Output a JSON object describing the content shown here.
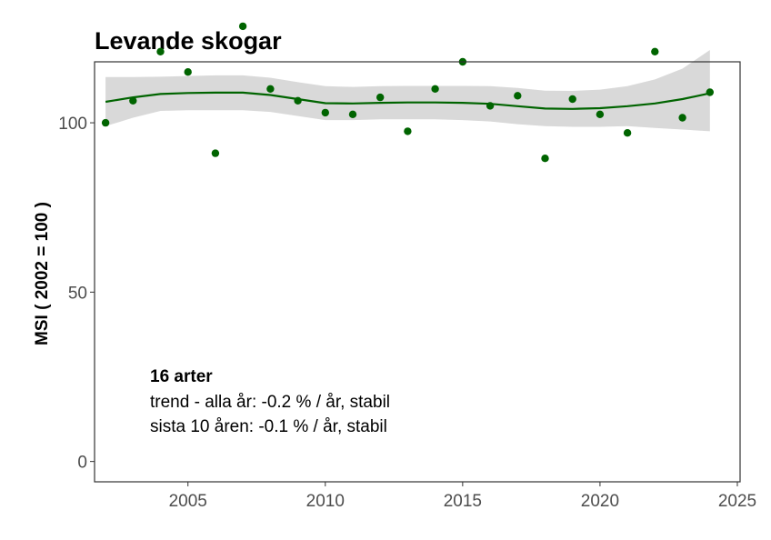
{
  "chart_data": {
    "type": "scatter",
    "title": "Levande skogar",
    "xlabel": "",
    "ylabel": "MSI ( 2002 = 100 )",
    "xlim": [
      2001.6,
      2025.1
    ],
    "ylim": [
      -6,
      118
    ],
    "x_ticks": [
      2005,
      2010,
      2015,
      2020,
      2025
    ],
    "y_ticks": [
      0,
      50,
      100
    ],
    "x_tick_labels": [
      "2005",
      "2010",
      "2015",
      "2020",
      "2025"
    ],
    "y_tick_labels": [
      "0",
      "50",
      "100"
    ],
    "grid": false,
    "points": {
      "x": [
        2002,
        2003,
        2004,
        2005,
        2006,
        2007,
        2008,
        2009,
        2010,
        2011,
        2012,
        2013,
        2014,
        2015,
        2016,
        2017,
        2018,
        2019,
        2020,
        2021,
        2022,
        2023,
        2024
      ],
      "y": [
        100,
        106.5,
        121,
        115,
        91,
        128.5,
        110,
        106.5,
        103,
        102.5,
        107.5,
        97.5,
        110,
        118,
        105,
        108,
        89.5,
        107,
        102.5,
        97,
        121,
        101.5,
        109
      ]
    },
    "trend": {
      "x": [
        2002,
        2003,
        2004,
        2005,
        2006,
        2007,
        2008,
        2009,
        2010,
        2011,
        2012,
        2013,
        2014,
        2015,
        2016,
        2017,
        2018,
        2019,
        2020,
        2021,
        2022,
        2023,
        2024
      ],
      "y": [
        106.2,
        107.5,
        108.5,
        108.8,
        108.9,
        108.9,
        108.2,
        107,
        105.8,
        105.7,
        105.9,
        106,
        106,
        105.9,
        105.6,
        104.9,
        104.2,
        104.1,
        104.3,
        104.9,
        105.7,
        107,
        108.7
      ],
      "lower": [
        99,
        101.5,
        103.5,
        103.7,
        103.7,
        103.7,
        103.2,
        102,
        100.8,
        100.8,
        101,
        101,
        101,
        100.8,
        100.4,
        99.6,
        99,
        98.8,
        98.8,
        99,
        98.5,
        98,
        97.5
      ],
      "upper": [
        113.5,
        113.5,
        113.6,
        113.8,
        114,
        114,
        113.3,
        112,
        110.8,
        110.6,
        110.8,
        110.9,
        110.9,
        110.9,
        110.8,
        110.3,
        109.5,
        109.4,
        109.8,
        110.8,
        112.8,
        116,
        121.5
      ]
    },
    "colors": {
      "points": "#006400",
      "trend_line": "#006400",
      "ribbon": "#d9d9d9",
      "axis_text": "#4d4d4d",
      "panel_border": "#333333"
    },
    "annotation": {
      "heading": "16 arter",
      "line1": "trend - alla år: -0.2 % / år, stabil",
      "line2": "sista 10 åren: -0.1 % / år, stabil"
    }
  }
}
